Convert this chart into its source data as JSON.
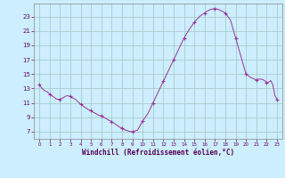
{
  "line_color": "#993399",
  "marker_color": "#993399",
  "bg_color": "#cceeff",
  "grid_color": "#aacccc",
  "xlabel": "Windchill (Refroidissement éolien,°C)",
  "ylabel_ticks": [
    7,
    9,
    11,
    13,
    15,
    17,
    19,
    21,
    23
  ],
  "ylim": [
    6.0,
    24.8
  ],
  "xlim": [
    -0.5,
    23.5
  ],
  "hours_dense": [
    0,
    0.2,
    0.5,
    0.8,
    1,
    1.2,
    1.5,
    1.7,
    2,
    2.3,
    2.5,
    2.7,
    3,
    3.2,
    3.5,
    3.7,
    4,
    4.2,
    4.5,
    4.7,
    5,
    5.2,
    5.5,
    5.7,
    6,
    6.2,
    6.5,
    6.7,
    7,
    7.2,
    7.4,
    7.6,
    7.8,
    8,
    8.2,
    8.4,
    8.6,
    8.8,
    9,
    9.5,
    10,
    10.5,
    11,
    11.5,
    12,
    12.5,
    13,
    13.5,
    14,
    14.5,
    15,
    15.5,
    16,
    16.3,
    16.6,
    17,
    17.3,
    17.6,
    18,
    18.5,
    19,
    19.5,
    20,
    20.5,
    21,
    21.2,
    21.5,
    21.8,
    22,
    22.2,
    22.4,
    22.6,
    22.8,
    23
  ],
  "values_dense": [
    13.5,
    13.1,
    12.7,
    12.5,
    12.2,
    12.0,
    11.7,
    11.5,
    11.5,
    11.7,
    11.9,
    12.0,
    11.9,
    11.7,
    11.5,
    11.2,
    10.8,
    10.6,
    10.3,
    10.1,
    9.9,
    9.7,
    9.5,
    9.3,
    9.2,
    9.0,
    8.8,
    8.6,
    8.4,
    8.2,
    8.0,
    7.8,
    7.6,
    7.5,
    7.3,
    7.2,
    7.1,
    7.0,
    7.0,
    7.2,
    8.5,
    9.5,
    11.0,
    12.5,
    14.0,
    15.5,
    17.0,
    18.5,
    20.0,
    21.2,
    22.2,
    23.0,
    23.5,
    23.8,
    24.0,
    24.1,
    24.0,
    23.8,
    23.5,
    22.5,
    20.0,
    17.5,
    15.0,
    14.5,
    14.2,
    14.3,
    14.3,
    14.1,
    13.8,
    13.9,
    14.1,
    13.5,
    12.0,
    11.5
  ],
  "marker_x": [
    0,
    1,
    2,
    3,
    4,
    5,
    6,
    7,
    8,
    9,
    10,
    11,
    12,
    13,
    14,
    15,
    16,
    17,
    18,
    19,
    20,
    21,
    22,
    23
  ],
  "marker_y": [
    13.5,
    12.2,
    11.5,
    11.9,
    10.8,
    9.9,
    9.2,
    8.4,
    7.5,
    7.0,
    8.5,
    11.0,
    14.0,
    17.0,
    20.0,
    22.2,
    23.5,
    24.1,
    23.5,
    20.0,
    15.0,
    14.2,
    13.8,
    11.5
  ]
}
